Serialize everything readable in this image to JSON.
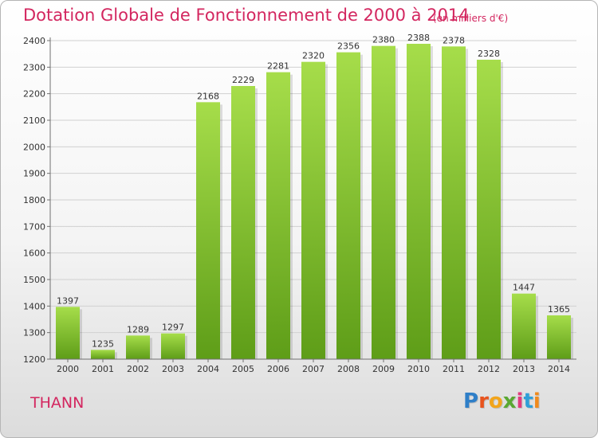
{
  "header": {
    "title": "Dotation Globale de Fonctionnement de 2000 à 2014",
    "subtitle": "(en milliers d'€)"
  },
  "footer": {
    "place": "THANN",
    "logo": "Proxiti"
  },
  "colors": {
    "accent": "#d3265f",
    "bar_top": "#a6dd4a",
    "bar_bottom": "#5e9d18",
    "grid": "#d0d0d0",
    "axis": "#707070"
  },
  "chart_data": {
    "type": "bar",
    "title": "Dotation Globale de Fonctionnement de 2000 à 2014",
    "xlabel": "",
    "ylabel": "",
    "ylim": [
      1200,
      2400
    ],
    "yticks": [
      1200,
      1300,
      1400,
      1500,
      1600,
      1700,
      1800,
      1900,
      2000,
      2100,
      2200,
      2300,
      2400
    ],
    "grid": true,
    "categories": [
      "2000",
      "2001",
      "2002",
      "2003",
      "2004",
      "2005",
      "2006",
      "2007",
      "2008",
      "2009",
      "2010",
      "2011",
      "2012",
      "2013",
      "2014"
    ],
    "values": [
      1397,
      1235,
      1289,
      1297,
      2168,
      2229,
      2281,
      2320,
      2356,
      2380,
      2388,
      2378,
      2328,
      1447,
      1365
    ]
  }
}
